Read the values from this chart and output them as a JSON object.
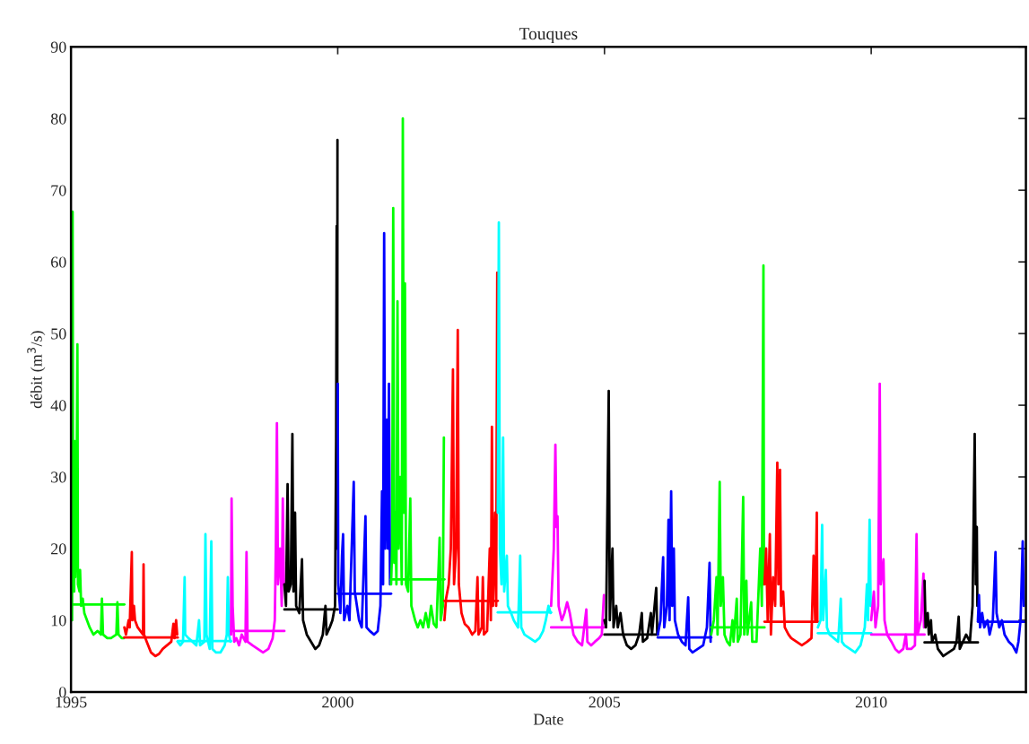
{
  "chart_data": {
    "type": "line",
    "title": "Touques",
    "xlabel": "Date",
    "ylabel": "débit (m$^{3}$/s)",
    "xlim": [
      1995,
      2012.9
    ],
    "xticks": [
      1995,
      2000,
      2005,
      2010
    ],
    "ylim": [
      0,
      90
    ],
    "yticks": [
      0,
      10,
      20,
      30,
      40,
      50,
      60,
      70,
      80,
      90
    ],
    "series": [
      {
        "color": "#00ff00",
        "x": [
          1995.0,
          1995.01,
          1995.02,
          1995.03,
          1995.04,
          1995.05,
          1995.06,
          1995.07,
          1995.08,
          1995.1,
          1995.12,
          1995.13,
          1995.16,
          1995.17,
          1995.19,
          1995.22,
          1995.25,
          1995.3,
          1995.35,
          1995.42,
          1995.5,
          1995.56,
          1995.58,
          1995.6,
          1995.68,
          1995.75,
          1995.85,
          1995.87,
          1995.89,
          1995.95,
          1995.99
        ],
        "values": [
          10,
          15,
          10,
          67,
          20,
          25,
          14,
          35,
          16,
          22,
          48.5,
          15,
          14,
          17,
          12,
          13,
          11,
          10,
          9,
          8,
          8.5,
          8,
          13,
          8,
          7.5,
          7.5,
          8,
          12.5,
          8,
          7.5,
          7.5
        ]
      },
      {
        "color": "#00ff00",
        "x": [
          1995,
          1996
        ],
        "values": [
          12.2,
          12.2
        ]
      },
      {
        "color": "#ff0000",
        "x": [
          1996.0,
          1996.03,
          1996.08,
          1996.1,
          1996.14,
          1996.15,
          1996.18,
          1996.2,
          1996.25,
          1996.3,
          1996.35,
          1996.36,
          1996.37,
          1996.42,
          1996.5,
          1996.58,
          1996.65,
          1996.72,
          1996.8,
          1996.88,
          1996.92,
          1996.94,
          1996.97,
          1996.99
        ],
        "values": [
          9,
          8,
          10,
          9,
          19.5,
          10,
          12,
          10,
          9,
          8.5,
          8,
          17.8,
          8,
          7,
          5.5,
          5,
          5.3,
          6,
          6.5,
          7,
          9.5,
          7.5,
          10,
          8
        ]
      },
      {
        "color": "#ff0000",
        "x": [
          1996,
          1997
        ],
        "values": [
          7.6,
          7.6
        ]
      },
      {
        "color": "#00ffff",
        "x": [
          1997.0,
          1997.05,
          1997.1,
          1997.13,
          1997.14,
          1997.2,
          1997.28,
          1997.35,
          1997.4,
          1997.42,
          1997.5,
          1997.52,
          1997.54,
          1997.6,
          1997.63,
          1997.65,
          1997.72,
          1997.8,
          1997.88,
          1997.92,
          1997.94,
          1997.96,
          1997.99
        ],
        "values": [
          7,
          6.5,
          7,
          16,
          8,
          7.5,
          7,
          6.5,
          10,
          6.5,
          7,
          22,
          8,
          6,
          21,
          6,
          5.5,
          5.5,
          6.5,
          8,
          16,
          8,
          7
        ]
      },
      {
        "color": "#00ffff",
        "x": [
          1997,
          1998
        ],
        "values": [
          7.1,
          7.1
        ]
      },
      {
        "color": "#ff00ff",
        "x": [
          1998.0,
          1998.01,
          1998.03,
          1998.06,
          1998.1,
          1998.15,
          1998.2,
          1998.27,
          1998.29,
          1998.31,
          1998.4,
          1998.5,
          1998.6,
          1998.7,
          1998.78,
          1998.82,
          1998.84,
          1998.86,
          1998.88,
          1998.92,
          1998.95,
          1998.97,
          1998.99
        ],
        "values": [
          8,
          27,
          12,
          7,
          7.5,
          6.5,
          8,
          7,
          19.5,
          7,
          6.5,
          6,
          5.5,
          6,
          7.5,
          10,
          20,
          37.5,
          15,
          20,
          12,
          27,
          15
        ]
      },
      {
        "color": "#ff00ff",
        "x": [
          1998,
          1999
        ],
        "values": [
          8.5,
          8.5
        ]
      },
      {
        "color": "#000000",
        "x": [
          1999.0,
          1999.03,
          1999.06,
          1999.08,
          1999.12,
          1999.15,
          1999.17,
          1999.2,
          1999.22,
          1999.28,
          1999.33,
          1999.35,
          1999.42,
          1999.5,
          1999.58,
          1999.65,
          1999.72,
          1999.77,
          1999.79,
          1999.85,
          1999.9,
          1999.95,
          1999.97,
          1999.98,
          1999.99,
          1999.995
        ],
        "values": [
          15,
          12,
          29,
          14,
          15,
          36,
          14,
          25,
          12,
          11,
          18.5,
          10,
          8,
          7,
          6,
          6.5,
          8,
          12,
          8,
          9,
          10,
          12,
          35,
          65,
          20,
          77
        ]
      },
      {
        "color": "#000000",
        "x": [
          1999,
          2000
        ],
        "values": [
          11.5,
          11.5
        ]
      },
      {
        "color": "#0000ff",
        "x": [
          2000.0,
          2000.01,
          2000.05,
          2000.08,
          2000.1,
          2000.12,
          2000.18,
          2000.22,
          2000.3,
          2000.32,
          2000.36,
          2000.4,
          2000.45,
          2000.52,
          2000.54,
          2000.6,
          2000.68,
          2000.75,
          2000.8,
          2000.83,
          2000.85,
          2000.87,
          2000.89,
          2000.92,
          2000.94,
          2000.96,
          2000.98,
          2000.99
        ],
        "values": [
          43,
          15,
          11,
          19,
          22,
          10,
          12,
          10,
          29.3,
          14,
          12,
          10,
          9,
          24.5,
          9,
          8.5,
          8,
          8.5,
          12,
          28,
          15,
          64,
          20,
          38,
          20,
          43,
          15,
          18
        ]
      },
      {
        "color": "#0000ff",
        "x": [
          2000,
          2001
        ],
        "values": [
          13.7,
          13.7
        ]
      },
      {
        "color": "#00ff00",
        "x": [
          2001.0,
          2001.02,
          2001.04,
          2001.06,
          2001.08,
          2001.1,
          2001.12,
          2001.14,
          2001.17,
          2001.2,
          2001.22,
          2001.24,
          2001.26,
          2001.28,
          2001.32,
          2001.36,
          2001.38,
          2001.45,
          2001.5,
          2001.55,
          2001.6,
          2001.65,
          2001.7,
          2001.75,
          2001.8,
          2001.85,
          2001.91,
          2001.93,
          2001.97,
          2001.99
        ],
        "values": [
          15,
          20,
          67.5,
          18,
          25,
          15,
          54.5,
          20,
          30,
          15,
          80,
          25,
          57,
          15,
          14,
          27,
          12,
          10,
          9,
          10,
          9,
          11,
          9,
          12,
          9.5,
          9,
          21.5,
          10,
          12,
          35.5
        ]
      },
      {
        "color": "#00ff00",
        "x": [
          2001,
          2002
        ],
        "values": [
          15.7,
          15.7
        ]
      },
      {
        "color": "#ff0000",
        "x": [
          2002.0,
          2002.03,
          2002.08,
          2002.12,
          2002.16,
          2002.18,
          2002.22,
          2002.25,
          2002.27,
          2002.32,
          2002.38,
          2002.45,
          2002.52,
          2002.58,
          2002.62,
          2002.64,
          2002.7,
          2002.72,
          2002.74,
          2002.8,
          2002.85,
          2002.87,
          2002.89,
          2002.91,
          2002.95,
          2002.97,
          2002.99
        ],
        "values": [
          10,
          13,
          15,
          20,
          45,
          15,
          20,
          50.5,
          15,
          11,
          9.5,
          9,
          8,
          8.5,
          16,
          8,
          9,
          16,
          8,
          8.5,
          20,
          10,
          37,
          12,
          25,
          12,
          58.5
        ]
      },
      {
        "color": "#ff0000",
        "x": [
          2002,
          2003
        ],
        "values": [
          12.7,
          12.7
        ]
      },
      {
        "color": "#00ffff",
        "x": [
          2003.0,
          2003.02,
          2003.04,
          2003.07,
          2003.1,
          2003.12,
          2003.17,
          2003.19,
          2003.25,
          2003.3,
          2003.38,
          2003.42,
          2003.44,
          2003.5,
          2003.6,
          2003.7,
          2003.78,
          2003.85,
          2003.9,
          2003.95,
          2003.99
        ],
        "values": [
          25,
          65.5,
          20,
          15,
          35.5,
          14,
          19,
          12,
          11,
          10,
          9,
          19,
          9,
          8,
          7.5,
          7,
          7.5,
          8.5,
          10,
          12,
          11
        ]
      },
      {
        "color": "#00ffff",
        "x": [
          2003,
          2004
        ],
        "values": [
          11.1,
          11.1
        ]
      },
      {
        "color": "#ff00ff",
        "x": [
          2004.0,
          2004.05,
          2004.08,
          2004.1,
          2004.12,
          2004.14,
          2004.2,
          2004.25,
          2004.3,
          2004.35,
          2004.42,
          2004.5,
          2004.58,
          2004.66,
          2004.68,
          2004.75,
          2004.82,
          2004.9,
          2004.95,
          2004.99
        ],
        "values": [
          12,
          20,
          34.5,
          23,
          24.5,
          12,
          10,
          11,
          12.5,
          11,
          8,
          7,
          6.5,
          11.5,
          7,
          6.5,
          7,
          7.5,
          8,
          13.5
        ]
      },
      {
        "color": "#ff00ff",
        "x": [
          2004,
          2005
        ],
        "values": [
          9.0,
          9.0
        ]
      },
      {
        "color": "#000000",
        "x": [
          2005.0,
          2005.03,
          2005.08,
          2005.1,
          2005.15,
          2005.17,
          2005.22,
          2005.25,
          2005.3,
          2005.35,
          2005.42,
          2005.5,
          2005.58,
          2005.65,
          2005.7,
          2005.72,
          2005.8,
          2005.87,
          2005.89,
          2005.97,
          2005.99
        ],
        "values": [
          10,
          9,
          42,
          10,
          20,
          9,
          12,
          9,
          11,
          8,
          6.5,
          6,
          6.5,
          8,
          11,
          7,
          7.5,
          11,
          8,
          14.5,
          8
        ]
      },
      {
        "color": "#000000",
        "x": [
          2005,
          2006
        ],
        "values": [
          8.0,
          8.0
        ]
      },
      {
        "color": "#0000ff",
        "x": [
          2006.0,
          2006.05,
          2006.1,
          2006.12,
          2006.17,
          2006.2,
          2006.22,
          2006.25,
          2006.27,
          2006.3,
          2006.32,
          2006.38,
          2006.45,
          2006.52,
          2006.57,
          2006.59,
          2006.65,
          2006.75,
          2006.85,
          2006.92,
          2006.97,
          2006.99
        ],
        "values": [
          8,
          10,
          18.8,
          9,
          12,
          24,
          10,
          28,
          12,
          20,
          10,
          8,
          7,
          6.5,
          13.2,
          6,
          5.5,
          6,
          6.5,
          9,
          18,
          7
        ]
      },
      {
        "color": "#0000ff",
        "x": [
          2006,
          2007
        ],
        "values": [
          7.6,
          7.6
        ]
      },
      {
        "color": "#00ff00",
        "x": [
          2007.0,
          2007.05,
          2007.1,
          2007.12,
          2007.16,
          2007.18,
          2007.22,
          2007.25,
          2007.3,
          2007.35,
          2007.4,
          2007.42,
          2007.48,
          2007.5,
          2007.55,
          2007.6,
          2007.62,
          2007.66,
          2007.68,
          2007.75,
          2007.77,
          2007.85,
          2007.92,
          2007.95,
          2007.98,
          2007.99
        ],
        "values": [
          8,
          10,
          16,
          8,
          29.3,
          12,
          16,
          8,
          7,
          6.5,
          10,
          7,
          13,
          7,
          8,
          27.2,
          8,
          15.5,
          8,
          12.5,
          7,
          7,
          20,
          12,
          59.5,
          15
        ]
      },
      {
        "color": "#00ff00",
        "x": [
          2007,
          2008
        ],
        "values": [
          9.0,
          9.0
        ]
      },
      {
        "color": "#ff0000",
        "x": [
          2008.0,
          2008.03,
          2008.06,
          2008.1,
          2008.12,
          2008.16,
          2008.2,
          2008.24,
          2008.26,
          2008.29,
          2008.31,
          2008.35,
          2008.38,
          2008.45,
          2008.5,
          2008.6,
          2008.7,
          2008.8,
          2008.88,
          2008.92,
          2008.95,
          2008.98,
          2008.99
        ],
        "values": [
          15,
          20,
          10,
          22,
          8,
          16,
          12,
          32,
          15,
          31,
          12,
          14,
          9,
          8,
          7.5,
          7,
          6.5,
          7,
          7.5,
          19,
          10,
          25,
          10
        ]
      },
      {
        "color": "#ff0000",
        "x": [
          2008,
          2009
        ],
        "values": [
          9.8,
          9.8
        ]
      },
      {
        "color": "#00ffff",
        "x": [
          2009.0,
          2009.05,
          2009.08,
          2009.1,
          2009.15,
          2009.17,
          2009.22,
          2009.3,
          2009.38,
          2009.43,
          2009.45,
          2009.5,
          2009.6,
          2009.7,
          2009.8,
          2009.88,
          2009.92,
          2009.94,
          2009.97,
          2009.99
        ],
        "values": [
          9,
          10,
          23.3,
          10,
          17,
          9,
          8,
          7.5,
          7,
          13,
          7,
          6.5,
          6,
          5.5,
          6.5,
          9,
          15,
          10,
          24,
          12
        ]
      },
      {
        "color": "#00ffff",
        "x": [
          2009,
          2010
        ],
        "values": [
          8.2,
          8.2
        ]
      },
      {
        "color": "#ff00ff",
        "x": [
          2010.0,
          2010.05,
          2010.08,
          2010.13,
          2010.16,
          2010.18,
          2010.23,
          2010.25,
          2010.3,
          2010.38,
          2010.45,
          2010.52,
          2010.6,
          2010.65,
          2010.67,
          2010.75,
          2010.82,
          2010.85,
          2010.87,
          2010.93,
          2010.98,
          2010.99
        ],
        "values": [
          10,
          14,
          9,
          12,
          43,
          15,
          18.5,
          10,
          8,
          7,
          6,
          5.5,
          6,
          8,
          6,
          6,
          6.5,
          22,
          8,
          10,
          16.5,
          9
        ]
      },
      {
        "color": "#ff00ff",
        "x": [
          2010,
          2011
        ],
        "values": [
          8.0,
          8.0
        ]
      },
      {
        "color": "#000000",
        "x": [
          2011.0,
          2011.02,
          2011.06,
          2011.08,
          2011.12,
          2011.14,
          2011.2,
          2011.25,
          2011.35,
          2011.45,
          2011.55,
          2011.6,
          2011.64,
          2011.66,
          2011.72,
          2011.78,
          2011.85,
          2011.9,
          2011.94,
          2011.96,
          2011.98,
          2011.99
        ],
        "values": [
          15.5,
          9,
          11,
          8,
          10,
          7,
          8,
          6,
          5,
          5.5,
          6,
          7,
          10.5,
          6,
          7,
          8,
          7,
          12,
          36,
          15,
          23,
          12
        ]
      },
      {
        "color": "#000000",
        "x": [
          2011,
          2012
        ],
        "values": [
          6.9,
          6.9
        ]
      },
      {
        "color": "#0000ff",
        "x": [
          2012.0,
          2012.02,
          2012.04,
          2012.08,
          2012.12,
          2012.18,
          2012.22,
          2012.28,
          2012.33,
          2012.35,
          2012.4,
          2012.45,
          2012.5,
          2012.58,
          2012.65,
          2012.72,
          2012.76,
          2012.8,
          2012.84,
          2012.86
        ],
        "values": [
          10,
          13.5,
          9,
          11,
          9,
          10,
          8,
          10,
          19.5,
          11,
          9,
          10,
          8,
          7,
          6.5,
          5.5,
          7,
          10,
          21,
          12
        ]
      },
      {
        "color": "#0000ff",
        "x": [
          2012,
          2012.9
        ],
        "values": [
          9.8,
          9.8
        ]
      }
    ]
  }
}
